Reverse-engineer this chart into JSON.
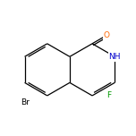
{
  "bg_color": "#ffffff",
  "bond_color": "#000000",
  "atom_colors": {
    "O": "#ff6600",
    "N": "#0000cc",
    "Br": "#000000",
    "F": "#009900"
  },
  "bond_width": 0.9,
  "figsize": [
    1.52,
    1.52
  ],
  "dpi": 100,
  "scale": 0.95,
  "font_size": 6.5
}
